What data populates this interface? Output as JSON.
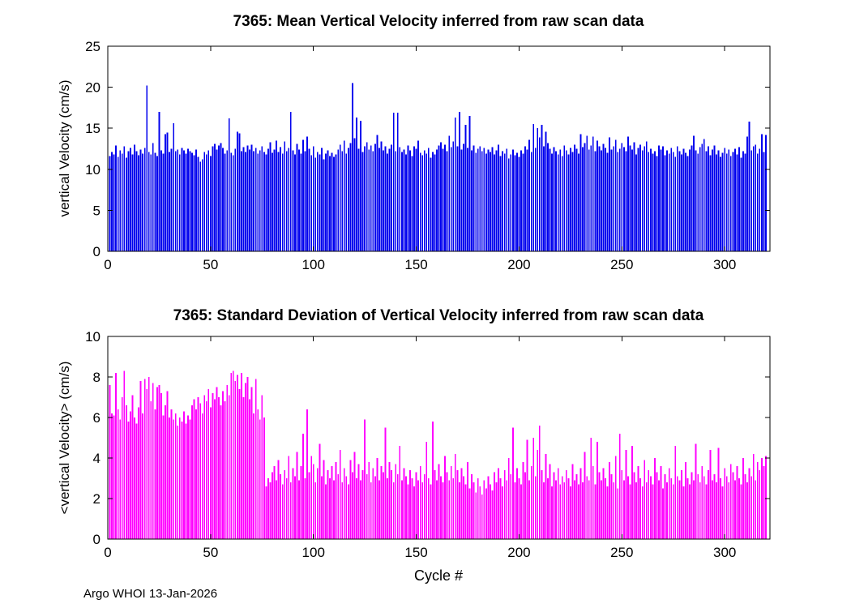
{
  "figure": {
    "footer": "Argo WHOI 13-Jan-2026",
    "background": "#ffffff"
  },
  "chart_data": [
    {
      "type": "bar",
      "series_name": "mean-vertical-velocity",
      "title": "7365: Mean Vertical Velocity inferred from raw scan data",
      "xlabel": "",
      "ylabel": "vertical Velocity (cm/s)",
      "bar_color": "#0000ee",
      "grid": false,
      "xlim": [
        0,
        322
      ],
      "ylim": [
        0,
        25
      ],
      "xticks": [
        0,
        50,
        100,
        150,
        200,
        250,
        300
      ],
      "yticks": [
        0,
        5,
        10,
        15,
        20,
        25
      ],
      "x_start": 1,
      "x_step": 1,
      "values": [
        11.6,
        12.1,
        11.8,
        12.9,
        11.5,
        12.3,
        11.9,
        12.8,
        11.4,
        12.2,
        12.6,
        11.8,
        13.0,
        12.2,
        11.7,
        12.4,
        11.9,
        12.6,
        20.2,
        12.1,
        11.8,
        13.2,
        12.0,
        11.6,
        17.0,
        12.3,
        11.9,
        14.3,
        14.5,
        12.1,
        12.5,
        15.6,
        12.2,
        12.4,
        11.8,
        12.6,
        12.3,
        11.9,
        12.5,
        12.2,
        12.0,
        11.7,
        12.4,
        11.5,
        10.9,
        11.2,
        12.1,
        11.8,
        12.3,
        11.6,
        12.8,
        13.1,
        12.4,
        12.9,
        13.2,
        12.6,
        11.9,
        12.3,
        16.2,
        12.0,
        11.7,
        12.5,
        14.6,
        14.4,
        12.2,
        12.7,
        12.1,
        12.9,
        12.4,
        13.0,
        12.2,
        12.6,
        11.9,
        12.3,
        12.8,
        12.1,
        11.8,
        12.5,
        13.3,
        12.0,
        12.4,
        13.5,
        12.1,
        12.7,
        11.9,
        13.4,
        12.2,
        12.6,
        17.0,
        12.3,
        11.8,
        13.1,
        12.4,
        11.9,
        13.6,
        12.2,
        14.0,
        12.5,
        11.7,
        12.8,
        11.4,
        12.1,
        11.8,
        12.6,
        11.2,
        11.9,
        12.3,
        11.6,
        12.0,
        11.5,
        11.8,
        12.4,
        13.0,
        12.2,
        13.5,
        11.9,
        12.6,
        13.2,
        20.5,
        13.8,
        16.3,
        12.5,
        15.9,
        12.1,
        12.8,
        13.3,
        12.4,
        12.9,
        12.2,
        13.1,
        14.2,
        12.6,
        13.4,
        12.3,
        12.8,
        11.9,
        12.5,
        13.0,
        16.9,
        12.2,
        16.9,
        12.7,
        12.1,
        12.4,
        11.8,
        12.9,
        12.3,
        11.6,
        12.8,
        12.5,
        13.5,
        12.0,
        11.7,
        12.3,
        11.9,
        12.6,
        11.4,
        12.1,
        11.8,
        12.4,
        12.9,
        13.3,
        12.5,
        13.0,
        12.2,
        14.1,
        12.7,
        13.4,
        16.3,
        12.8,
        17.0,
        12.4,
        13.1,
        15.4,
        12.6,
        16.5,
        12.3,
        12.9,
        12.0,
        12.5,
        12.8,
        12.2,
        12.6,
        11.9,
        12.4,
        12.1,
        12.7,
        11.8,
        12.3,
        13.0,
        11.6,
        12.2,
        11.9,
        12.5,
        11.3,
        11.8,
        12.4,
        11.7,
        12.0,
        11.5,
        12.3,
        11.9,
        12.8,
        12.4,
        13.6,
        12.1,
        15.5,
        12.6,
        15.0,
        13.9,
        15.4,
        12.8,
        14.6,
        13.2,
        12.5,
        11.9,
        12.7,
        12.2,
        11.8,
        12.4,
        11.6,
        12.9,
        12.3,
        11.8,
        12.6,
        12.1,
        13.0,
        12.5,
        11.9,
        14.3,
        12.7,
        13.2,
        14.1,
        12.4,
        12.9,
        14.0,
        12.2,
        13.5,
        12.8,
        12.3,
        13.1,
        12.6,
        12.0,
        13.9,
        12.4,
        12.8,
        13.6,
        12.1,
        12.5,
        13.2,
        12.7,
        12.2,
        14.0,
        12.9,
        12.4,
        13.3,
        11.8,
        12.6,
        13.0,
        12.3,
        12.8,
        13.4,
        12.1,
        12.5,
        11.9,
        12.2,
        11.6,
        12.9,
        12.4,
        12.8,
        11.7,
        12.3,
        11.9,
        12.6,
        12.1,
        11.5,
        12.8,
        12.2,
        11.8,
        12.5,
        12.0,
        11.6,
        12.4,
        12.9,
        14.1,
        12.3,
        11.9,
        12.7,
        13.1,
        13.7,
        12.2,
        12.8,
        11.7,
        12.4,
        12.9,
        11.8,
        12.3,
        11.5,
        12.0,
        12.6,
        11.9,
        12.4,
        11.6,
        12.1,
        12.5,
        11.8,
        12.7,
        11.4,
        12.2,
        11.9,
        14.0,
        15.8,
        12.3,
        12.8,
        13.0,
        11.9,
        12.5,
        14.3,
        12.1,
        14.2
      ]
    },
    {
      "type": "bar",
      "series_name": "std-vertical-velocity",
      "title": "7365: Standard Deviation of Vertical Velocity inferred from raw scan data",
      "xlabel": "Cycle #",
      "ylabel": "<vertical Velocity> (cm/s)",
      "bar_color": "#ff00ff",
      "grid": false,
      "xlim": [
        0,
        322
      ],
      "ylim": [
        0,
        10
      ],
      "xticks": [
        0,
        50,
        100,
        150,
        200,
        250,
        300
      ],
      "yticks": [
        0,
        2,
        4,
        6,
        8,
        10
      ],
      "x_start": 1,
      "x_step": 1,
      "values": [
        7.6,
        6.2,
        6.1,
        8.2,
        6.4,
        5.9,
        7.0,
        8.3,
        6.6,
        5.8,
        6.3,
        7.1,
        6.0,
        5.7,
        6.5,
        7.8,
        6.2,
        7.9,
        7.4,
        8.0,
        6.8,
        7.7,
        6.4,
        7.5,
        7.6,
        7.2,
        6.1,
        6.6,
        7.3,
        6.0,
        6.4,
        5.9,
        6.2,
        5.6,
        6.0,
        5.8,
        6.3,
        5.7,
        6.1,
        5.9,
        6.6,
        6.9,
        6.4,
        7.0,
        6.7,
        6.2,
        7.1,
        6.8,
        7.4,
        6.5,
        7.2,
        6.9,
        7.5,
        7.0,
        6.6,
        7.3,
        6.8,
        7.6,
        7.1,
        8.2,
        8.3,
        7.8,
        8.1,
        7.4,
        8.2,
        7.0,
        7.7,
        8.0,
        6.9,
        7.5,
        6.2,
        7.9,
        6.4,
        5.9,
        7.1,
        6.0,
        2.6,
        3.0,
        2.8,
        3.3,
        3.6,
        2.9,
        3.9,
        3.2,
        2.7,
        3.4,
        3.0,
        4.1,
        2.8,
        3.5,
        3.1,
        4.3,
        2.9,
        3.6,
        5.2,
        3.0,
        6.4,
        3.3,
        4.1,
        3.7,
        2.8,
        3.5,
        4.7,
        3.1,
        3.9,
        2.7,
        3.4,
        3.0,
        3.6,
        2.9,
        3.8,
        3.2,
        4.4,
        2.8,
        3.5,
        3.1,
        2.7,
        3.9,
        3.3,
        4.3,
        3.0,
        3.7,
        2.9,
        3.4,
        5.9,
        3.2,
        3.8,
        2.8,
        3.5,
        3.1,
        4.0,
        2.9,
        3.6,
        3.3,
        5.5,
        3.0,
        3.8,
        3.4,
        2.8,
        3.7,
        3.2,
        4.6,
        2.9,
        3.5,
        3.1,
        2.7,
        3.4,
        3.0,
        2.6,
        3.3,
        2.9,
        3.6,
        2.8,
        3.2,
        4.8,
        3.0,
        2.7,
        5.8,
        3.4,
        2.9,
        3.7,
        3.1,
        2.8,
        4.1,
        3.3,
        2.9,
        3.6,
        3.0,
        4.2,
        3.4,
        2.8,
        3.5,
        3.1,
        2.7,
        3.8,
        2.5,
        3.2,
        2.8,
        2.3,
        3.0,
        2.6,
        2.2,
        2.9,
        2.5,
        3.1,
        2.7,
        2.4,
        3.3,
        2.8,
        3.5,
        3.0,
        2.6,
        3.4,
        2.9,
        4.0,
        3.2,
        5.5,
        2.8,
        3.5,
        3.0,
        2.7,
        3.8,
        3.3,
        4.9,
        2.9,
        3.6,
        5.0,
        3.1,
        4.4,
        5.6,
        3.4,
        2.8,
        4.2,
        3.0,
        3.7,
        2.6,
        3.3,
        2.9,
        3.5,
        2.7,
        3.1,
        2.8,
        3.4,
        3.0,
        2.6,
        3.7,
        2.9,
        3.2,
        2.7,
        3.5,
        2.8,
        4.3,
        3.1,
        2.9,
        5.0,
        3.6,
        2.7,
        4.8,
        3.3,
        2.9,
        3.5,
        3.0,
        2.6,
        3.8,
        3.2,
        2.8,
        4.1,
        2.5,
        5.2,
        3.4,
        2.9,
        4.4,
        3.1,
        2.7,
        4.6,
        3.3,
        2.8,
        3.6,
        3.0,
        2.6,
        3.9,
        2.8,
        3.4,
        3.1,
        2.7,
        4.0,
        3.3,
        2.9,
        3.6,
        2.5,
        3.2,
        2.8,
        3.5,
        3.0,
        2.7,
        4.6,
        3.1,
        2.9,
        3.4,
        2.6,
        3.8,
        3.0,
        2.7,
        3.3,
        2.9,
        4.7,
        3.2,
        2.8,
        3.6,
        3.1,
        2.7,
        3.4,
        4.4,
        2.9,
        3.2,
        2.8,
        4.5,
        3.0,
        2.6,
        3.5,
        3.1,
        2.8,
        3.7,
        3.3,
        2.9,
        3.6,
        3.0,
        2.7,
        4.0,
        3.2,
        2.8,
        3.5,
        3.1,
        4.2,
        2.9,
        3.8,
        3.4,
        4.0,
        3.6,
        4.1
      ]
    }
  ]
}
